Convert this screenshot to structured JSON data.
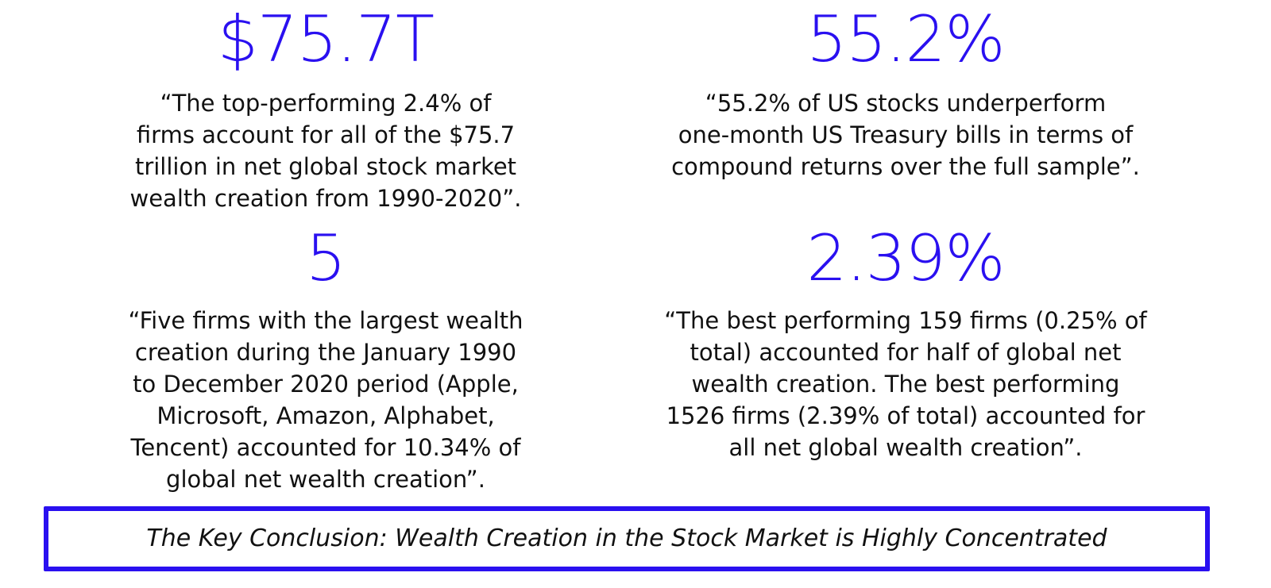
{
  "accent_color": "#2a10f0",
  "stats": [
    {
      "number": "$75.7T",
      "quote": "“The top-performing 2.4% of\nfirms account for all of the $75.7\ntrillion in net global stock market\nwealth creation from 1990-2020”."
    },
    {
      "number": "55.2%",
      "quote": "“55.2% of US stocks underperform\none-month US Treasury bills in terms of\ncompound returns over the full sample”."
    },
    {
      "number": "5",
      "quote": "“Five firms with the largest wealth\ncreation during the January 1990\nto December 2020 period (Apple,\nMicrosoft, Amazon, Alphabet,\nTencent) accounted for 10.34% of\nglobal net wealth creation”."
    },
    {
      "number": "2.39%",
      "quote": "“The best performing 159 firms (0.25% of\ntotal) accounted for half of global net\nwealth creation. The best performing\n1526 firms (2.39% of total) accounted for\nall net global wealth creation”."
    }
  ],
  "conclusion": "The Key Conclusion: Wealth Creation in the Stock Market is Highly Concentrated"
}
